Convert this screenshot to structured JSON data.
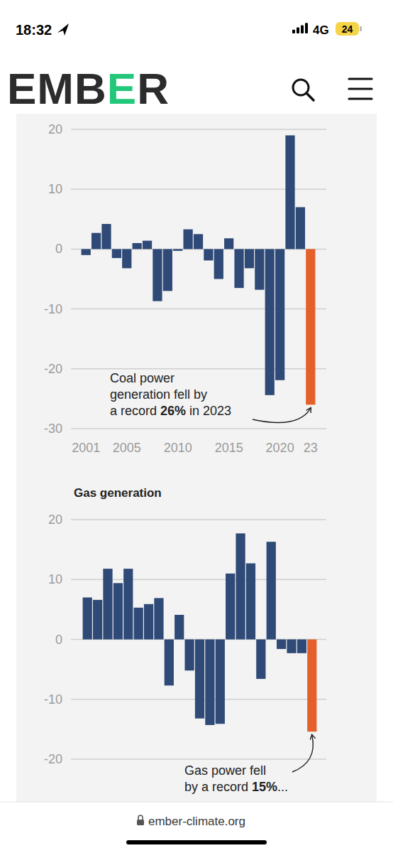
{
  "page": {
    "time": "18:32",
    "network": "4G",
    "battery": "24",
    "logo": "EMBER",
    "url": "ember-climate.org"
  },
  "chart_data": [
    {
      "type": "bar",
      "categories": [
        "2001",
        null,
        null,
        null,
        "2005",
        null,
        null,
        null,
        null,
        "2010",
        null,
        null,
        null,
        null,
        "2015",
        null,
        null,
        null,
        null,
        "2020",
        null,
        null,
        "23"
      ],
      "values": [
        -1,
        2.7,
        4.2,
        -1.5,
        -3.2,
        1,
        1.4,
        -8.7,
        -7,
        -0.3,
        3.3,
        2.5,
        -1.9,
        -5,
        1.8,
        -6.5,
        -3.2,
        -6.8,
        -24.4,
        -21.9,
        19,
        7,
        -26
      ],
      "colors": [
        "#2f4a77",
        "#2f4a77",
        "#2f4a77",
        "#2f4a77",
        "#2f4a77",
        "#2f4a77",
        "#2f4a77",
        "#2f4a77",
        "#2f4a77",
        "#2f4a77",
        "#2f4a77",
        "#2f4a77",
        "#2f4a77",
        "#2f4a77",
        "#2f4a77",
        "#2f4a77",
        "#2f4a77",
        "#2f4a77",
        "#2f4a77",
        "#2f4a77",
        "#2f4a77",
        "#2f4a77",
        "#e4602a"
      ],
      "ylim": [
        -30,
        20
      ],
      "yticks": [
        20,
        10,
        0,
        -10,
        -20,
        -30
      ],
      "grid": true,
      "annotation": [
        "Coal power",
        "generation fell by",
        "a record 26% in 2023"
      ]
    },
    {
      "type": "bar",
      "title": "Gas generation",
      "categories": [
        null,
        null,
        null,
        null,
        null,
        null,
        null,
        null,
        null,
        null,
        null,
        null,
        null,
        null,
        null,
        null,
        null,
        null,
        null,
        null,
        null,
        null,
        null
      ],
      "values": [
        7,
        6.6,
        11.8,
        9.4,
        11.8,
        5.3,
        5.9,
        6.9,
        -7.7,
        4.1,
        -5.2,
        -13.2,
        -14.3,
        -14.1,
        11,
        17.7,
        12.7,
        -6.6,
        16.3,
        -1.6,
        -2.3,
        -2.3,
        -15.4
      ],
      "colors": [
        "#2f4a77",
        "#2f4a77",
        "#2f4a77",
        "#2f4a77",
        "#2f4a77",
        "#2f4a77",
        "#2f4a77",
        "#2f4a77",
        "#2f4a77",
        "#2f4a77",
        "#2f4a77",
        "#2f4a77",
        "#2f4a77",
        "#2f4a77",
        "#2f4a77",
        "#2f4a77",
        "#2f4a77",
        "#2f4a77",
        "#2f4a77",
        "#2f4a77",
        "#2f4a77",
        "#2f4a77",
        "#e4602a"
      ],
      "ylim": [
        -20,
        20
      ],
      "yticks": [
        20,
        10,
        0,
        -10,
        -20
      ],
      "grid": true,
      "tick_labels": "y",
      "annotation": [
        "Gas power fell",
        "by a record 15%..."
      ]
    }
  ]
}
